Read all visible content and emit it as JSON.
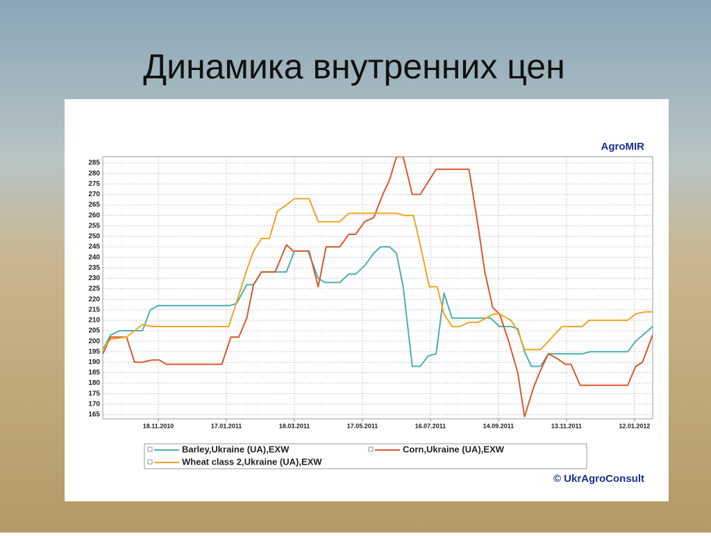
{
  "slide_title": "Динамика внутренних цен",
  "chart_data": {
    "type": "line",
    "title": "AgroMIR",
    "source": "© UkrAgroConsult",
    "xlim": [
      "30.09.2010",
      "28.01.2012"
    ],
    "xticks": [
      "18.11.2010",
      "17.01.2011",
      "18.03.2011",
      "17.05.2011",
      "16.07.2011",
      "14.09.2011",
      "13.11.2011",
      "12.01.2012"
    ],
    "ylim": [
      163,
      288
    ],
    "yticks": [
      165,
      170,
      175,
      180,
      185,
      190,
      195,
      200,
      205,
      210,
      215,
      220,
      225,
      230,
      235,
      240,
      245,
      250,
      255,
      260,
      265,
      270,
      275,
      280,
      285
    ],
    "grid": true,
    "series": [
      {
        "name": "Barley,Ukraine (UA),EXW",
        "color": "#4aaeb0",
        "x": [
          "30.09.2010",
          "07.10.2010",
          "15.10.2010",
          "04.11.2010",
          "11.11.2010",
          "18.11.2010",
          "20.01.2011",
          "26.01.2011",
          "04.02.2011",
          "10.02.2011",
          "17.02.2011",
          "11.03.2011",
          "18.03.2011",
          "30.03.2011",
          "08.04.2011",
          "14.04.2011",
          "27.04.2011",
          "05.05.2011",
          "11.05.2011",
          "19.05.2011",
          "27.05.2011",
          "02.06.2011",
          "10.06.2011",
          "16.06.2011",
          "22.06.2011",
          "30.06.2011",
          "07.07.2011",
          "14.07.2011",
          "21.07.2011",
          "28.07.2011",
          "04.08.2011",
          "07.09.2011",
          "15.09.2011",
          "25.09.2011",
          "01.10.2011",
          "07.10.2011",
          "13.10.2011",
          "21.10.2011",
          "28.10.2011",
          "27.11.2011",
          "04.12.2011",
          "06.01.2012",
          "13.01.2012",
          "28.01.2012"
        ],
        "values": [
          196,
          203,
          205,
          205,
          215,
          217,
          217,
          218,
          227,
          227,
          233,
          233,
          243,
          243,
          230,
          228,
          228,
          232,
          232,
          236,
          242,
          245,
          245,
          242,
          226,
          188,
          188,
          193,
          194,
          223,
          211,
          211,
          207,
          207,
          206,
          195,
          188,
          188,
          194,
          194,
          195,
          195,
          200,
          207
        ]
      },
      {
        "name": "Corn,Ukraine (UA),EXW",
        "color": "#d9572b",
        "x": [
          "30.09.2010",
          "07.10.2010",
          "21.10.2010",
          "28.10.2010",
          "04.11.2010",
          "12.11.2010",
          "19.11.2010",
          "25.11.2010",
          "13.01.2011",
          "21.01.2011",
          "28.01.2011",
          "04.02.2011",
          "10.02.2011",
          "17.02.2011",
          "01.03.2011",
          "11.03.2011",
          "17.03.2011",
          "31.03.2011",
          "08.04.2011",
          "15.04.2011",
          "27.04.2011",
          "05.05.2011",
          "11.05.2011",
          "19.05.2011",
          "27.05.2011",
          "04.06.2011",
          "10.06.2011",
          "16.06.2011",
          "22.06.2011",
          "30.06.2011",
          "07.07.2011",
          "14.07.2011",
          "21.07.2011",
          "19.08.2011",
          "27.08.2011",
          "02.09.2011",
          "09.09.2011",
          "15.09.2011",
          "23.09.2011",
          "01.10.2011",
          "07.10.2011",
          "15.10.2011",
          "21.10.2011",
          "28.10.2011",
          "04.11.2011",
          "12.11.2011",
          "17.11.2011",
          "25.11.2011",
          "06.01.2012",
          "13.01.2012",
          "19.01.2012",
          "28.01.2012"
        ],
        "values": [
          194,
          202,
          202,
          190,
          190,
          191,
          191,
          189,
          189,
          202,
          202,
          211,
          227,
          233,
          233,
          246,
          243,
          243,
          226,
          245,
          245,
          251,
          251,
          257,
          259,
          270,
          277,
          288,
          288,
          270,
          270,
          276,
          282,
          282,
          255,
          233,
          216,
          213,
          200,
          185,
          164,
          178,
          186,
          194,
          192,
          189,
          189,
          179,
          179,
          188,
          190,
          203
        ]
      },
      {
        "name": "Wheat class 2,Ukraine (UA),EXW",
        "color": "#f0a321",
        "x": [
          "30.09.2010",
          "07.10.2010",
          "21.10.2010",
          "28.10.2010",
          "04.11.2010",
          "12.11.2010",
          "19.01.2011",
          "28.01.2011",
          "04.02.2011",
          "10.02.2011",
          "17.02.2011",
          "24.02.2011",
          "03.03.2011",
          "11.03.2011",
          "18.03.2011",
          "31.03.2011",
          "08.04.2011",
          "27.04.2011",
          "05.05.2011",
          "16.06.2011",
          "23.06.2011",
          "01.07.2011",
          "07.07.2011",
          "15.07.2011",
          "22.07.2011",
          "28.07.2011",
          "04.08.2011",
          "11.08.2011",
          "19.08.2011",
          "27.08.2011",
          "03.09.2011",
          "10.09.2011",
          "15.09.2011",
          "25.09.2011",
          "01.10.2011",
          "07.10.2011",
          "21.10.2011",
          "28.10.2011",
          "09.11.2011",
          "27.11.2011",
          "03.12.2011",
          "06.01.2012",
          "13.01.2012",
          "21.01.2012",
          "28.01.2012"
        ],
        "values": [
          196,
          201,
          202,
          205,
          208,
          207,
          207,
          222,
          234,
          243,
          249,
          249,
          262,
          265,
          268,
          268,
          257,
          257,
          261,
          261,
          260,
          260,
          246,
          226,
          226,
          213,
          207,
          207,
          209,
          209,
          211,
          213,
          213,
          210,
          205,
          196,
          196,
          200,
          207,
          207,
          210,
          210,
          213,
          214,
          214
        ]
      }
    ]
  }
}
